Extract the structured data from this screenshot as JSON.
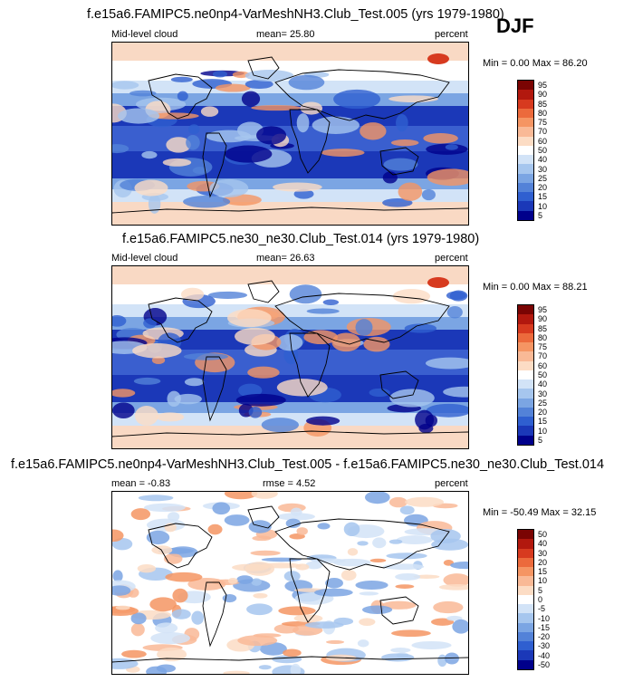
{
  "season": "DJF",
  "top_title": "f.e15a6.FAMIPC5.ne0np4-VarMeshNH3.Club_Test.005 (yrs 1979-1980)",
  "mid_title": "f.e15a6.FAMIPC5.ne30_ne30.Club_Test.014 (yrs 1979-1980)",
  "diff_title": "f.e15a6.FAMIPC5.ne0np4-VarMeshNH3.Club_Test.005 - f.e15a6.FAMIPC5.ne30_ne30.Club_Test.014",
  "panels": [
    {
      "left_label": "Mid-level cloud",
      "stat_label": "mean=  25.80",
      "units": "percent",
      "range": "Min =   0.00 Max =  86.20"
    },
    {
      "left_label": "Mid-level cloud",
      "stat_label": "mean=  26.63",
      "units": "percent",
      "range": "Min =   0.00 Max =  88.21"
    },
    {
      "left_label": "mean =  -0.83",
      "stat_label": "rmse =   4.52",
      "units": "percent",
      "range": "Min = -50.49 Max =  32.15"
    }
  ],
  "chart_data": [
    {
      "type": "heatmap",
      "title": "f.e15a6.FAMIPC5.ne0np4-VarMeshNH3.Club_Test.005 (yrs 1979-1980)",
      "field": "Mid-level cloud",
      "units": "percent",
      "mean": 25.8,
      "min": 0.0,
      "max": 86.2,
      "colorbar_levels": [
        95,
        90,
        85,
        80,
        75,
        70,
        60,
        50,
        40,
        30,
        25,
        20,
        15,
        10,
        5
      ],
      "colorbar_labels": [
        "95",
        "90",
        "85",
        "80",
        "75",
        "70",
        "60",
        "50",
        "40",
        "30",
        "25",
        "20",
        "15",
        "10",
        "5"
      ]
    },
    {
      "type": "heatmap",
      "title": "f.e15a6.FAMIPC5.ne30_ne30.Club_Test.014 (yrs 1979-1980)",
      "field": "Mid-level cloud",
      "units": "percent",
      "mean": 26.63,
      "min": 0.0,
      "max": 88.21,
      "colorbar_levels": [
        95,
        90,
        85,
        80,
        75,
        70,
        60,
        50,
        40,
        30,
        25,
        20,
        15,
        10,
        5
      ],
      "colorbar_labels": [
        "95",
        "90",
        "85",
        "80",
        "75",
        "70",
        "60",
        "50",
        "40",
        "30",
        "25",
        "20",
        "15",
        "10",
        "5"
      ]
    },
    {
      "type": "heatmap",
      "title": "f.e15a6.FAMIPC5.ne0np4-VarMeshNH3.Club_Test.005 - f.e15a6.FAMIPC5.ne30_ne30.Club_Test.014",
      "units": "percent",
      "mean": -0.83,
      "rmse": 4.52,
      "min": -50.49,
      "max": 32.15,
      "colorbar_levels": [
        50,
        40,
        30,
        20,
        15,
        10,
        5,
        0,
        -5,
        -10,
        -15,
        -20,
        -30,
        -40,
        -50
      ],
      "colorbar_labels": [
        "50",
        "40",
        "30",
        "20",
        "15",
        "10",
        "5",
        "0",
        "-5",
        "-10",
        "-15",
        "-20",
        "-30",
        "-40",
        "-50"
      ]
    }
  ],
  "colors": {
    "seq": [
      "#7a0403",
      "#b2180e",
      "#d73a1f",
      "#ec6a3c",
      "#f59563",
      "#f9b996",
      "#fcdcc4",
      "#ffffff",
      "#d2e3f7",
      "#a6c6ee",
      "#7ba5e3",
      "#5382d8",
      "#2f5fd0",
      "#1b38b8",
      "#00008b"
    ],
    "diff": [
      "#7a0403",
      "#b2180e",
      "#d73a1f",
      "#ec6a3c",
      "#f59563",
      "#f9b996",
      "#fcdcc4",
      "#ffffff",
      "#d2e3f7",
      "#a6c6ee",
      "#7ba5e3",
      "#5382d8",
      "#2f5fd0",
      "#1b38b8",
      "#00008b"
    ]
  }
}
